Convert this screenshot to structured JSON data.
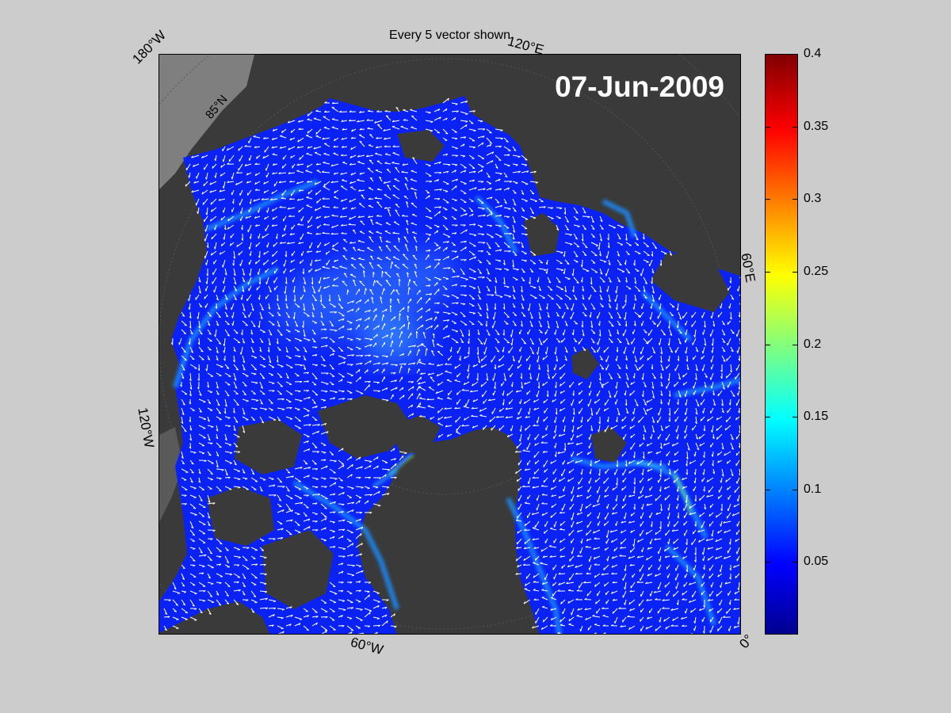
{
  "title": "Every 5 vector shown",
  "date": "07-Jun-2009",
  "longitude_labels": [
    "180°W",
    "120°E",
    "60°E",
    "0°",
    "60°W",
    "120°W"
  ],
  "latitude_labels": [
    "85°N"
  ],
  "colorbar": {
    "colormap": "jet",
    "range": [
      0,
      0.4
    ],
    "ticks": [
      "0.4",
      "0.35",
      "0.3",
      "0.25",
      "0.2",
      "0.15",
      "0.1",
      "0.05"
    ],
    "tick_values": [
      0.4,
      0.35,
      0.3,
      0.25,
      0.2,
      0.15,
      0.1,
      0.05
    ]
  },
  "colors": {
    "figure_background": "#cccccc",
    "land": "#3a3a3a",
    "ice_low_speed": "#0b1fff",
    "ice_mid_speed": "#1e90ff",
    "vector": "#ffffff"
  },
  "chart_data": {
    "type": "heatmap",
    "title": "Every 5 vector shown",
    "annotation": "07-Jun-2009",
    "value_range": [
      0,
      0.4
    ],
    "colorbar_ticks": [
      0.05,
      0.1,
      0.15,
      0.2,
      0.25,
      0.3,
      0.35,
      0.4
    ],
    "vector_field": "white arrows, every 5th vector shown"
  }
}
